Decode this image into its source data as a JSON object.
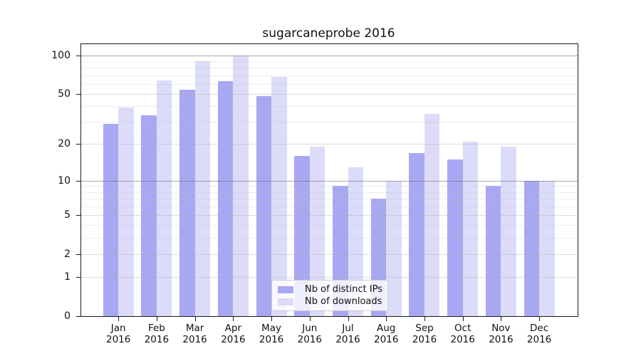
{
  "title": "sugarcaneprobe 2016",
  "chart_data": {
    "type": "bar",
    "title": "sugarcaneprobe 2016",
    "categories": [
      "Jan",
      "Feb",
      "Mar",
      "Apr",
      "May",
      "Jun",
      "Jul",
      "Aug",
      "Sep",
      "Oct",
      "Nov",
      "Dec"
    ],
    "xtick_year": "2016",
    "series": [
      {
        "name": "Nb of distinct IPs",
        "color": "#a8a8f2",
        "values": [
          29,
          34,
          54,
          63,
          48,
          16,
          9,
          7,
          17,
          15,
          9,
          10
        ]
      },
      {
        "name": "Nb of downloads",
        "color": "#dcdcf9",
        "values": [
          39,
          64,
          90,
          100,
          68,
          19,
          13,
          10,
          35,
          21,
          19,
          10
        ]
      }
    ],
    "yscale": "log10(1+y)",
    "ylim": [
      0,
      122
    ],
    "yticks": [
      0,
      1,
      2,
      5,
      10,
      20,
      50,
      100
    ],
    "minor_yticks": [
      3,
      4,
      6,
      7,
      8,
      9,
      30,
      40,
      60,
      70,
      80,
      90
    ],
    "strong_gridlines": [
      10,
      100
    ],
    "grid": true,
    "legend_position": "lower-center",
    "xlabel": "",
    "ylabel": ""
  },
  "colors": {
    "bar_ips": "#a8a8f2",
    "bar_downloads": "#dcdcf9",
    "grid_minor": "#ececec",
    "grid_labeled": "#dddddd",
    "grid_strong": "#b0b0b0",
    "axis": "#1a1a1a",
    "background": "#ffffff"
  }
}
